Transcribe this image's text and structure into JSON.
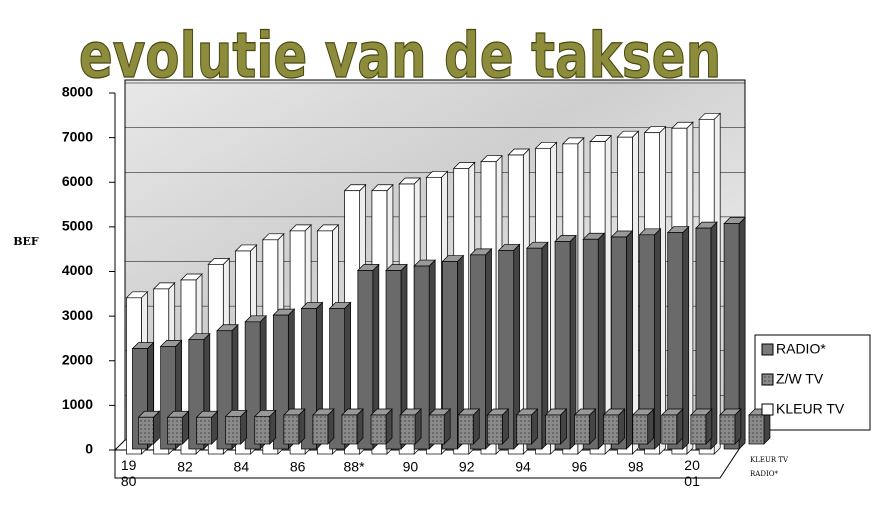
{
  "chart_data": {
    "type": "bar3d",
    "title": "evolutie van de taksen",
    "y_label": "BEF",
    "categories": [
      "1980",
      null,
      "82",
      null,
      "84",
      null,
      "86",
      null,
      "88*",
      null,
      "90",
      null,
      "92",
      null,
      "94",
      null,
      "96",
      null,
      "98",
      null,
      "2001",
      null
    ],
    "series": [
      {
        "name": "RADIO*",
        "color": "#7a7a7a",
        "values": [
          600,
          600,
          600,
          620,
          620,
          650,
          650,
          650,
          650,
          650,
          650,
          650,
          650,
          650,
          650,
          650,
          650,
          650,
          650,
          650,
          650,
          650
        ]
      },
      {
        "name": "Z/W TV",
        "color": "#6a6a6a",
        "values": [
          2250,
          2300,
          2450,
          2650,
          2850,
          3000,
          3150,
          3150,
          4000,
          4000,
          4100,
          4200,
          4350,
          4450,
          4500,
          4650,
          4700,
          4750,
          4800,
          4850,
          4950,
          5050
        ]
      },
      {
        "name": "KLEUR TV",
        "color": "#ffffff",
        "values": [
          3500,
          3700,
          3900,
          4250,
          4550,
          4800,
          5000,
          5000,
          5900,
          5900,
          6050,
          6200,
          6400,
          6550,
          6700,
          6850,
          6950,
          7000,
          7100,
          7200,
          7300,
          7500
        ]
      }
    ],
    "ylim": [
      0,
      8000
    ],
    "yticks": [
      0,
      1000,
      2000,
      3000,
      4000,
      5000,
      6000,
      7000,
      8000
    ],
    "grid": true
  }
}
